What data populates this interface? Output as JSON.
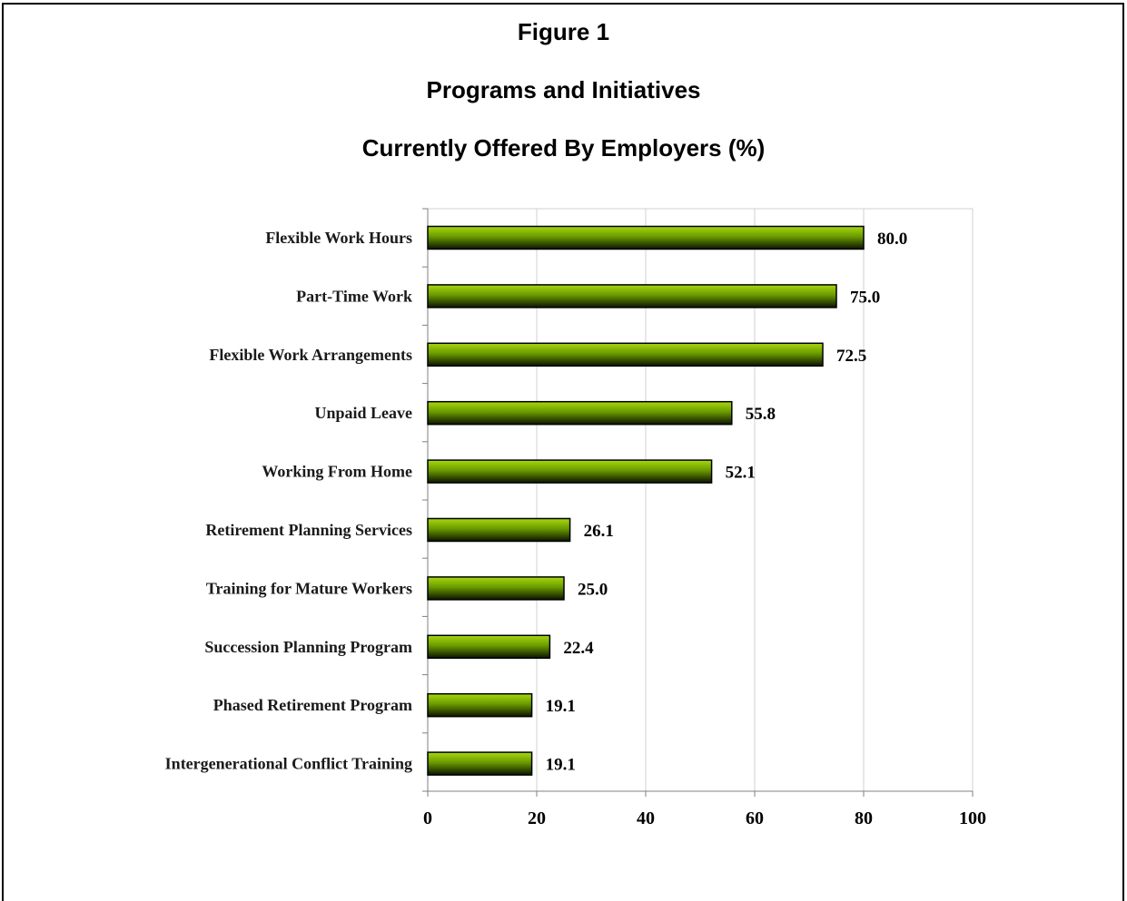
{
  "figure": {
    "label": "Figure 1",
    "title_line1": "Programs and Initiatives",
    "title_line2": "Currently Offered By Employers (%)"
  },
  "colors": {
    "bar_light": "#a8d80f",
    "bar_mid": "#6a9a00",
    "bar_dark": "#0b1400",
    "grid": "#d0d0d0",
    "axis": "#808080"
  },
  "chart_data": {
    "type": "bar",
    "orientation": "horizontal",
    "title": "Currently Offered By Employers (%)",
    "xlabel": "",
    "ylabel": "",
    "xlim": [
      0,
      100
    ],
    "xticks": [
      0,
      20,
      40,
      60,
      80,
      100
    ],
    "grid": true,
    "categories": [
      "Flexible Work Hours",
      "Part-Time Work",
      "Flexible Work Arrangements",
      "Unpaid Leave",
      "Working From Home",
      "Retirement Planning Services",
      "Training for Mature Workers",
      "Succession Planning Program",
      "Phased Retirement Program",
      "Intergenerational Conflict Training"
    ],
    "values": [
      80.0,
      75.0,
      72.5,
      55.8,
      52.1,
      26.1,
      25.0,
      22.4,
      19.1,
      19.1
    ],
    "value_labels": [
      "80.0",
      "75.0",
      "72.5",
      "55.8",
      "52.1",
      "26.1",
      "25.0",
      "22.4",
      "19.1",
      "19.1"
    ]
  }
}
